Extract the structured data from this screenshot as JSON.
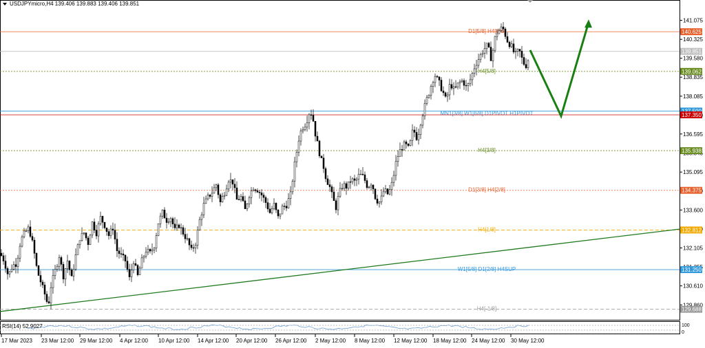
{
  "header": {
    "title": "USDJPYmicro,H4  139.406 139.883 139.406 139.851"
  },
  "rsi": {
    "label": "RSI(14) 52.9027",
    "scale_top": "100",
    "scale_bottom": "0",
    "levels": [
      30,
      70
    ]
  },
  "colors": {
    "bull_candle": "#ffffff",
    "bear_candle": "#000000",
    "trendline": "#1e7a1e",
    "arrow": "#1a7f12",
    "rsi_line": "#6a9fd6"
  },
  "chart_data": {
    "type": "candlestick",
    "symbol": "USDJPYmicro",
    "timeframe": "H4",
    "ylim": [
      129.3,
      141.55
    ],
    "y_ticks": [
      "141.075",
      "140.325",
      "139.580",
      "138.835",
      "138.085",
      "137.340",
      "136.595",
      "135.845",
      "135.095",
      "134.350",
      "133.600",
      "132.850",
      "132.105",
      "131.355",
      "130.610",
      "129.860"
    ],
    "x_ticks": [
      "17 Mar 2023",
      "23 Mar 12:00",
      "29 Mar 12:00",
      "4 Apr 12:00",
      "10 Apr 12:00",
      "14 Apr 12:00",
      "20 Apr 12:00",
      "26 Apr 12:00",
      "2 May 12:00",
      "8 May 12:00",
      "12 May 12:00",
      "18 May 12:00",
      "24 May 12:00",
      "30 May 12:00"
    ],
    "current_price": "139.851",
    "price_path": [
      [
        0,
        131.9
      ],
      [
        6,
        131.6
      ],
      [
        12,
        131.0
      ],
      [
        18,
        131.4
      ],
      [
        24,
        131.5
      ],
      [
        30,
        132.4
      ],
      [
        36,
        132.7
      ],
      [
        42,
        132.9
      ],
      [
        48,
        132.2
      ],
      [
        54,
        131.2
      ],
      [
        60,
        130.7
      ],
      [
        66,
        130.2
      ],
      [
        70,
        129.8
      ],
      [
        74,
        130.6
      ],
      [
        80,
        131.2
      ],
      [
        86,
        131.8
      ],
      [
        92,
        131.0
      ],
      [
        98,
        131.6
      ],
      [
        104,
        130.9
      ],
      [
        110,
        131.8
      ],
      [
        116,
        132.5
      ],
      [
        122,
        132.7
      ],
      [
        128,
        132.3
      ],
      [
        134,
        133.1
      ],
      [
        140,
        132.7
      ],
      [
        146,
        133.3
      ],
      [
        152,
        133.0
      ],
      [
        158,
        132.6
      ],
      [
        164,
        132.9
      ],
      [
        170,
        132.0
      ],
      [
        176,
        131.8
      ],
      [
        182,
        131.6
      ],
      [
        188,
        130.9
      ],
      [
        194,
        131.6
      ],
      [
        200,
        131.0
      ],
      [
        206,
        131.6
      ],
      [
        212,
        132.0
      ],
      [
        218,
        131.9
      ],
      [
        224,
        132.2
      ],
      [
        230,
        133.1
      ],
      [
        236,
        133.5
      ],
      [
        242,
        133.2
      ],
      [
        248,
        133.3
      ],
      [
        254,
        132.8
      ],
      [
        260,
        133.0
      ],
      [
        266,
        132.7
      ],
      [
        272,
        132.4
      ],
      [
        278,
        132.0
      ],
      [
        284,
        132.3
      ],
      [
        290,
        133.2
      ],
      [
        296,
        133.8
      ],
      [
        302,
        134.1
      ],
      [
        308,
        134.3
      ],
      [
        314,
        134.6
      ],
      [
        320,
        133.9
      ],
      [
        326,
        134.3
      ],
      [
        332,
        134.8
      ],
      [
        338,
        134.7
      ],
      [
        344,
        134.0
      ],
      [
        350,
        134.1
      ],
      [
        356,
        133.6
      ],
      [
        362,
        134.2
      ],
      [
        368,
        134.5
      ],
      [
        374,
        134.4
      ],
      [
        380,
        134.2
      ],
      [
        386,
        133.9
      ],
      [
        392,
        133.5
      ],
      [
        398,
        133.8
      ],
      [
        404,
        133.3
      ],
      [
        410,
        133.7
      ],
      [
        416,
        133.8
      ],
      [
        422,
        134.2
      ],
      [
        428,
        135.4
      ],
      [
        434,
        136.4
      ],
      [
        438,
        136.8
      ],
      [
        444,
        137.0
      ],
      [
        450,
        137.5
      ],
      [
        454,
        137.3
      ],
      [
        458,
        136.6
      ],
      [
        462,
        136.1
      ],
      [
        466,
        135.6
      ],
      [
        470,
        135.3
      ],
      [
        474,
        134.8
      ],
      [
        478,
        134.6
      ],
      [
        484,
        134.0
      ],
      [
        488,
        133.7
      ],
      [
        492,
        134.2
      ],
      [
        498,
        134.6
      ],
      [
        504,
        134.5
      ],
      [
        510,
        134.8
      ],
      [
        516,
        134.7
      ],
      [
        522,
        135.0
      ],
      [
        528,
        134.9
      ],
      [
        534,
        134.5
      ],
      [
        540,
        134.7
      ],
      [
        546,
        134.0
      ],
      [
        552,
        133.9
      ],
      [
        558,
        134.4
      ],
      [
        564,
        134.2
      ],
      [
        570,
        134.7
      ],
      [
        576,
        135.6
      ],
      [
        582,
        136.0
      ],
      [
        588,
        136.2
      ],
      [
        594,
        136.0
      ],
      [
        600,
        136.8
      ],
      [
        606,
        136.4
      ],
      [
        612,
        137.2
      ],
      [
        618,
        137.8
      ],
      [
        624,
        138.3
      ],
      [
        628,
        138.7
      ],
      [
        632,
        138.9
      ],
      [
        638,
        138.6
      ],
      [
        644,
        138.2
      ],
      [
        648,
        137.9
      ],
      [
        654,
        138.6
      ],
      [
        660,
        138.3
      ],
      [
        666,
        138.6
      ],
      [
        672,
        138.7
      ],
      [
        678,
        138.4
      ],
      [
        684,
        138.8
      ],
      [
        690,
        139.3
      ],
      [
        696,
        139.6
      ],
      [
        702,
        139.9
      ],
      [
        708,
        140.1
      ],
      [
        714,
        139.5
      ],
      [
        718,
        140.3
      ],
      [
        722,
        140.6
      ],
      [
        726,
        140.7
      ],
      [
        730,
        140.8
      ],
      [
        734,
        140.5
      ],
      [
        738,
        140.2
      ],
      [
        742,
        140.1
      ],
      [
        748,
        139.7
      ],
      [
        754,
        139.9
      ],
      [
        760,
        139.4
      ],
      [
        764,
        139.3
      ],
      [
        768,
        139.6
      ]
    ],
    "levels": [
      {
        "label": "D1[5/8] H4[8/8]",
        "price": "140.625",
        "value": 140.625,
        "color": "#e8602c",
        "style": "solid"
      },
      {
        "label": "",
        "price": "139.851",
        "value": 139.851,
        "color": "#c0c0c0",
        "style": "solid"
      },
      {
        "label": "H4[5/8]",
        "price": "139.062",
        "value": 139.062,
        "color": "#6b8e23",
        "style": "dotted"
      },
      {
        "label": "MN1[3/8] W1[6/8] D1PIVOT H1PIVOT",
        "price": "137.500",
        "value": 137.5,
        "color": "#3399dd",
        "style": "solid"
      },
      {
        "label": "",
        "price": "137.350",
        "value": 137.35,
        "color": "#cc0000",
        "style": "solid"
      },
      {
        "label": "H4[3/8]",
        "price": "135.938",
        "value": 135.938,
        "color": "#6b8e23",
        "style": "dotted"
      },
      {
        "label": "D1[3/8] H4[2/8]",
        "price": "134.375",
        "value": 134.375,
        "color": "#e8602c",
        "style": "dotted"
      },
      {
        "label": "H4[1/8]",
        "price": "132.812",
        "value": 132.812,
        "color": "#f2a900",
        "style": "dashed"
      },
      {
        "label": "W1[5/8] D1[2/8] H4SUP",
        "price": "131.250",
        "value": 131.25,
        "color": "#3399dd",
        "style": "solid"
      },
      {
        "label": "H4[-1/8]",
        "price": "129.688",
        "value": 129.688,
        "color": "#9a9a9a",
        "style": "dashed"
      }
    ],
    "trendline": [
      [
        0,
        129.6
      ],
      [
        988,
        132.85
      ]
    ],
    "arrow": [
      [
        770,
        139.9
      ],
      [
        815,
        137.3
      ],
      [
        855,
        141.0
      ]
    ]
  }
}
